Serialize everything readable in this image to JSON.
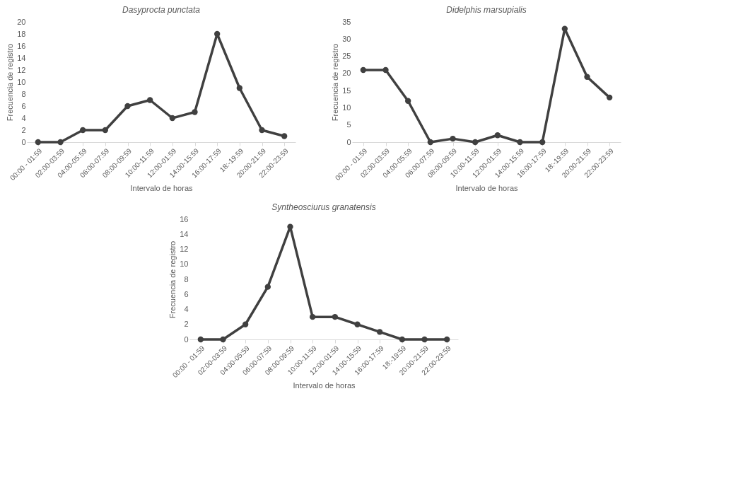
{
  "chart_data": [
    {
      "type": "line",
      "title": "Dasyprocta punctata",
      "xlabel": "Intervalo de horas",
      "ylabel": "Frecuencia de registro",
      "categories": [
        "00:00 - 01:59",
        "02:00-03:59",
        "04:00-05:59",
        "06:00-07:59",
        "08:00-09:59",
        "10:00-11:59",
        "12:00-01:59",
        "14:00-15:59",
        "16:00-17:59",
        "18:-19:59",
        "20:00-21:59",
        "22:00-23:59"
      ],
      "series": [
        {
          "color": "#404040",
          "values": [
            0,
            0,
            2,
            2,
            6,
            7,
            4,
            5,
            18,
            9,
            2,
            1
          ]
        }
      ],
      "ylim": [
        0,
        20
      ],
      "yticks": [
        0,
        2,
        4,
        6,
        8,
        10,
        12,
        14,
        16,
        18,
        20
      ],
      "grid": false,
      "marker": "circle",
      "line_style": "solid"
    },
    {
      "type": "line",
      "title": "Didelphis marsupialis",
      "xlabel": "Intervalo de horas",
      "ylabel": "Frecuencia de registro",
      "categories": [
        "00:00 - 01:59",
        "02:00-03:59",
        "04:00-05:59",
        "06:00-07:59",
        "08:00-09:59",
        "10:00-11:59",
        "12:00-01:59",
        "14:00-15:59",
        "16:00-17:59",
        "18:-19:59",
        "20:00-21:59",
        "22:00-23:59"
      ],
      "series": [
        {
          "color": "#404040",
          "values": [
            21,
            21,
            12,
            0,
            1,
            0,
            2,
            0,
            0,
            33,
            19,
            13
          ]
        }
      ],
      "ylim": [
        0,
        35
      ],
      "yticks": [
        0,
        5,
        10,
        15,
        20,
        25,
        30,
        35
      ],
      "grid": false,
      "marker": "circle",
      "line_style": "solid"
    },
    {
      "type": "line",
      "title": "Syntheosciurus granatensis",
      "xlabel": "Intervalo de horas",
      "ylabel": "Frecuencia de registro",
      "categories": [
        "00:00 - 01:59",
        "02:00-03:59",
        "04:00-05:59",
        "06:00-07:59",
        "08:00-09:59",
        "10:00-11:59",
        "12:00-01:59",
        "14:00-15:59",
        "16:00-17:59",
        "18:-19:59",
        "20:00-21:59",
        "22:00-23:59"
      ],
      "series": [
        {
          "color": "#404040",
          "values": [
            0,
            0,
            2,
            7,
            15,
            3,
            3,
            2,
            1,
            0,
            0,
            0
          ]
        }
      ],
      "ylim": [
        0,
        16
      ],
      "yticks": [
        0,
        2,
        4,
        6,
        8,
        10,
        12,
        14,
        16
      ],
      "grid": false,
      "marker": "circle",
      "line_style": "solid"
    }
  ]
}
